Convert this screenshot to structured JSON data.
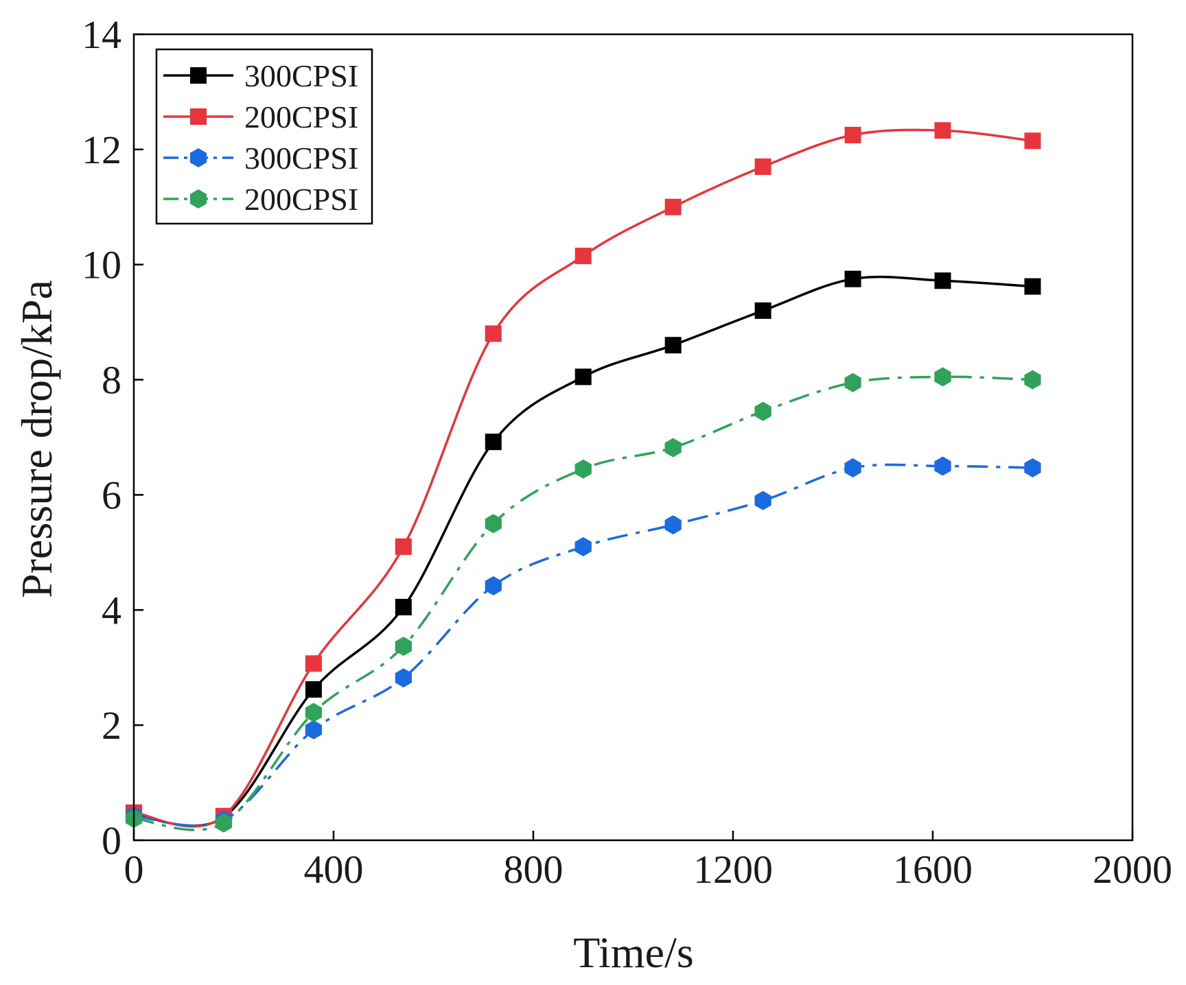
{
  "chart_data": {
    "type": "line",
    "title": "",
    "xlabel": "Time/s",
    "ylabel": "Pressure drop/kPa",
    "xlim": [
      0,
      2000
    ],
    "ylim": [
      0,
      14
    ],
    "xticks": [
      "0",
      "400",
      "800",
      "1200",
      "1600",
      "2000"
    ],
    "yticks": [
      "0",
      "2",
      "4",
      "6",
      "8",
      "10",
      "12",
      "14"
    ],
    "grid": false,
    "legend_position": "top-left",
    "x": [
      0,
      180,
      360,
      540,
      720,
      900,
      1080,
      1260,
      1440,
      1620,
      1800
    ],
    "series": [
      {
        "name": "300CPSI",
        "color": "#000000",
        "marker": "square",
        "line_style": "solid",
        "values": [
          0.45,
          0.4,
          2.62,
          4.05,
          6.92,
          8.05,
          8.6,
          9.2,
          9.75,
          9.72,
          9.62
        ]
      },
      {
        "name": "200CPSI",
        "color": "#e8353b",
        "marker": "square",
        "line_style": "solid",
        "values": [
          0.48,
          0.42,
          3.07,
          5.1,
          8.8,
          10.15,
          11.0,
          11.7,
          12.25,
          12.33,
          12.15
        ]
      },
      {
        "name": "300CPSI",
        "color": "#1a6be0",
        "marker": "hexagon",
        "line_style": "dash-dot",
        "values": [
          0.42,
          0.35,
          1.92,
          2.82,
          4.42,
          5.1,
          5.48,
          5.9,
          6.47,
          6.5,
          6.47
        ]
      },
      {
        "name": "200CPSI",
        "color": "#2fa35a",
        "marker": "hexagon",
        "line_style": "dash-dot",
        "values": [
          0.38,
          0.3,
          2.22,
          3.37,
          5.5,
          6.45,
          6.82,
          7.45,
          7.95,
          8.05,
          8.0
        ]
      }
    ]
  }
}
